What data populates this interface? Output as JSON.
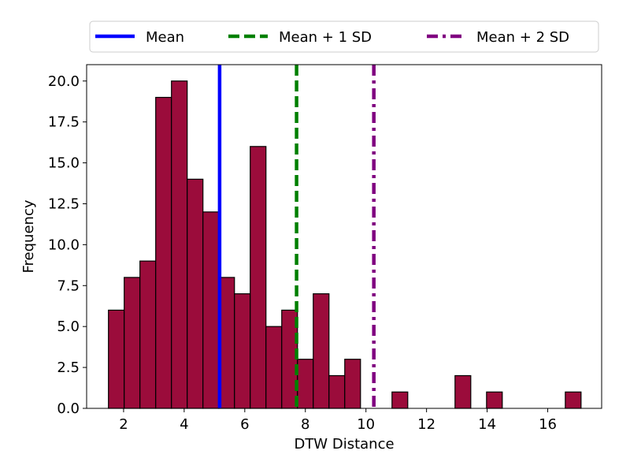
{
  "chart_data": {
    "type": "bar",
    "subtype": "histogram",
    "xlabel": "DTW Distance",
    "ylabel": "Frequency",
    "xlim": [
      0.78,
      17.78
    ],
    "ylim": [
      0,
      21.0
    ],
    "xticks": [
      2,
      4,
      6,
      8,
      10,
      12,
      14,
      16
    ],
    "yticks": [
      0.0,
      2.5,
      5.0,
      7.5,
      10.0,
      12.5,
      15.0,
      17.5,
      20.0
    ],
    "xtick_labels": [
      "2",
      "4",
      "6",
      "8",
      "10",
      "12",
      "14",
      "16"
    ],
    "ytick_labels": [
      "0.0",
      "2.5",
      "5.0",
      "7.5",
      "10.0",
      "12.5",
      "15.0",
      "17.5",
      "20.0"
    ],
    "bin_start": 1.5,
    "bin_width": 0.52,
    "values": [
      6,
      8,
      9,
      19,
      20,
      14,
      12,
      8,
      7,
      16,
      5,
      6,
      3,
      7,
      2,
      3,
      0,
      0,
      1,
      0,
      0,
      0,
      2,
      0,
      1,
      0,
      0,
      0,
      0,
      1
    ],
    "bar_color": "#9b0c3b",
    "bar_edge_color": "#000000",
    "grid": false,
    "legend_position": "top-center",
    "reference_lines": [
      {
        "name": "Mean",
        "x": 5.17,
        "color": "#0000ff",
        "style": "solid"
      },
      {
        "name": "Mean + 1 SD",
        "x": 7.71,
        "color": "#008000",
        "style": "dashed"
      },
      {
        "name": "Mean + 2 SD",
        "x": 10.26,
        "color": "#800080",
        "style": "dashdot"
      }
    ]
  }
}
